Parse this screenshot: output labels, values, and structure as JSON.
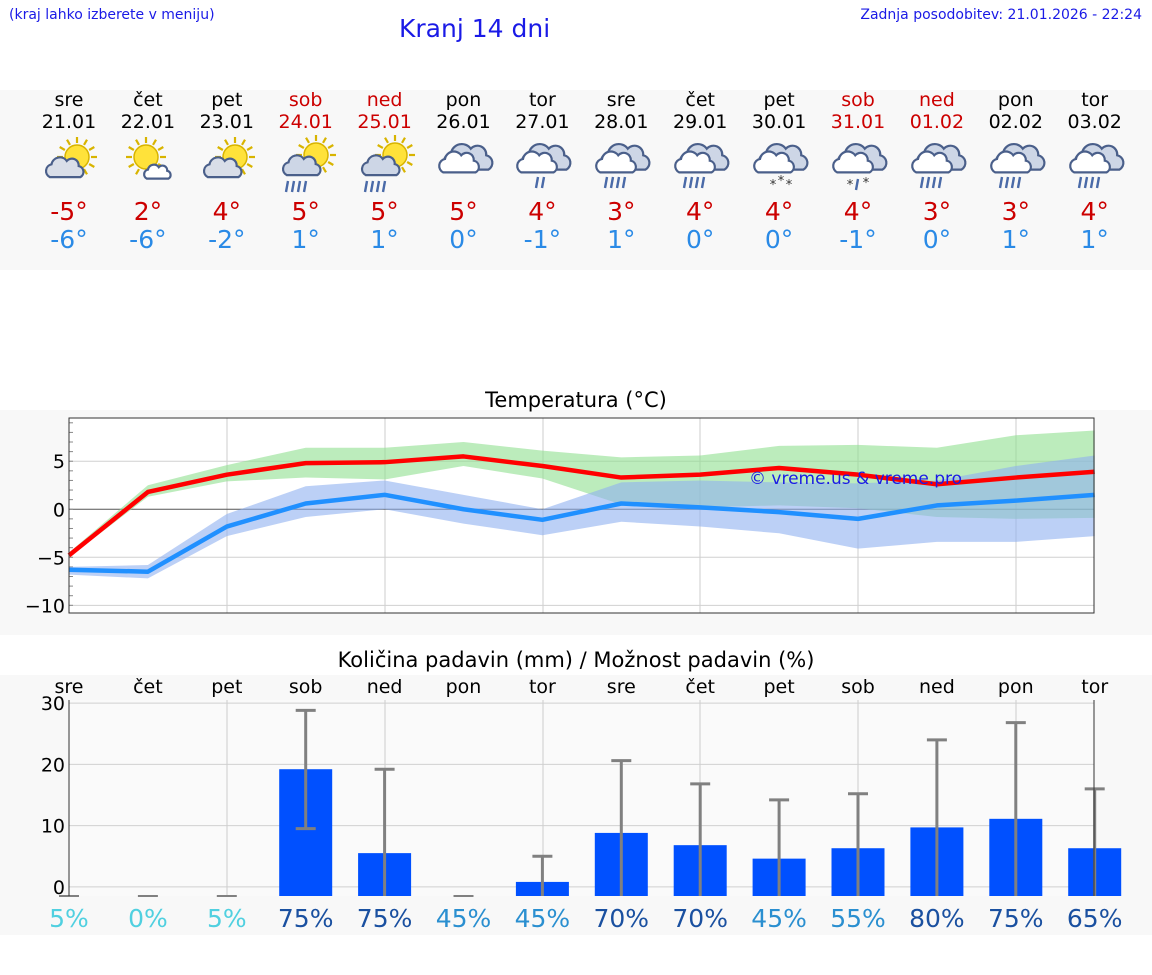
{
  "header": {
    "region_hint": "(kraj lahko izberete v meniju)",
    "title": "Kranj 14 dni",
    "updated": "Zadnja posodobitev: 21.01.2026 - 22:24"
  },
  "colors": {
    "max_temp": "#ff0000",
    "min_temp": "#2090ff",
    "bar": "#0050ff",
    "weekend": "#cc0000",
    "green_band": "#8fe08f",
    "blue_band": "#8fb0f0"
  },
  "days": [
    {
      "name": "sre",
      "date": "21.01",
      "max": "-5°",
      "min": "-6°",
      "icon": "sun-cloud-icon",
      "weekend": false,
      "prob": "5%"
    },
    {
      "name": "čet",
      "date": "22.01",
      "max": "2°",
      "min": "-6°",
      "icon": "sun-small-cloud-icon",
      "weekend": false,
      "prob": "0%"
    },
    {
      "name": "pet",
      "date": "23.01",
      "max": "4°",
      "min": "-2°",
      "icon": "sun-cloud-icon",
      "weekend": false,
      "prob": "5%"
    },
    {
      "name": "sob",
      "date": "24.01",
      "max": "5°",
      "min": "1°",
      "icon": "sun-cloud-rain-icon",
      "weekend": true,
      "prob": "75%"
    },
    {
      "name": "ned",
      "date": "25.01",
      "max": "5°",
      "min": "1°",
      "icon": "sun-cloud-rain-icon",
      "weekend": true,
      "prob": "75%"
    },
    {
      "name": "pon",
      "date": "26.01",
      "max": "5°",
      "min": "0°",
      "icon": "cloud-icon",
      "weekend": false,
      "prob": "45%"
    },
    {
      "name": "tor",
      "date": "27.01",
      "max": "4°",
      "min": "-1°",
      "icon": "cloud-light-rain-icon",
      "weekend": false,
      "prob": "45%"
    },
    {
      "name": "sre",
      "date": "28.01",
      "max": "3°",
      "min": "1°",
      "icon": "cloud-rain-icon",
      "weekend": false,
      "prob": "70%"
    },
    {
      "name": "čet",
      "date": "29.01",
      "max": "4°",
      "min": "0°",
      "icon": "cloud-rain-icon",
      "weekend": false,
      "prob": "70%"
    },
    {
      "name": "pet",
      "date": "30.01",
      "max": "4°",
      "min": "0°",
      "icon": "cloud-snow-icon",
      "weekend": false,
      "prob": "45%"
    },
    {
      "name": "sob",
      "date": "31.01",
      "max": "4°",
      "min": "-1°",
      "icon": "cloud-sleet-icon",
      "weekend": true,
      "prob": "55%"
    },
    {
      "name": "ned",
      "date": "01.02",
      "max": "3°",
      "min": "0°",
      "icon": "cloud-rain-icon",
      "weekend": true,
      "prob": "80%"
    },
    {
      "name": "pon",
      "date": "02.02",
      "max": "3°",
      "min": "1°",
      "icon": "cloud-rain-icon",
      "weekend": false,
      "prob": "75%"
    },
    {
      "name": "tor",
      "date": "03.02",
      "max": "4°",
      "min": "1°",
      "icon": "cloud-rain-icon",
      "weekend": false,
      "prob": "65%"
    }
  ],
  "chart_data": [
    {
      "type": "line",
      "title": "Temperatura (°C)",
      "watermark": "© vreme.us & vreme.pro",
      "x": [
        0,
        1,
        2,
        3,
        4,
        5,
        6,
        7,
        8,
        9,
        10,
        11,
        12,
        13
      ],
      "ylim": [
        -10.8,
        9.5
      ],
      "yticks": [
        -10,
        -5,
        0,
        5
      ],
      "ytick_labels": [
        "−10",
        "−5",
        "0",
        "5"
      ],
      "series": [
        {
          "name": "max",
          "values": [
            -4.8,
            1.8,
            3.6,
            4.8,
            4.9,
            5.5,
            4.5,
            3.3,
            3.6,
            4.3,
            3.6,
            2.6,
            3.3,
            3.9
          ]
        },
        {
          "name": "min",
          "values": [
            -6.3,
            -6.5,
            -1.8,
            0.6,
            1.5,
            0.0,
            -1.1,
            0.6,
            0.2,
            -0.3,
            -1.0,
            0.4,
            0.9,
            1.5
          ]
        },
        {
          "name": "max-range-high",
          "values": [
            -4.5,
            2.5,
            4.6,
            6.4,
            6.4,
            7.0,
            6.1,
            5.4,
            5.6,
            6.6,
            6.7,
            6.4,
            7.7,
            8.2
          ]
        },
        {
          "name": "max-range-low",
          "values": [
            -5.0,
            1.3,
            2.9,
            3.3,
            3.1,
            4.5,
            3.2,
            0.5,
            0.2,
            0.4,
            0.1,
            -0.8,
            -1.0,
            -0.9
          ]
        },
        {
          "name": "min-range-high",
          "values": [
            -6.0,
            -5.8,
            -0.5,
            2.4,
            3.0,
            1.5,
            0.0,
            2.8,
            3.0,
            2.8,
            2.7,
            3.0,
            4.5,
            5.6
          ]
        },
        {
          "name": "min-range-low",
          "values": [
            -6.8,
            -7.2,
            -2.8,
            -0.8,
            0.0,
            -1.5,
            -2.7,
            -1.3,
            -1.8,
            -2.5,
            -4.1,
            -3.4,
            -3.4,
            -2.8
          ]
        }
      ]
    },
    {
      "type": "bar",
      "title": "Količina padavin (mm) / Možnost padavin (%)",
      "categories": [
        "sre",
        "čet",
        "pet",
        "sob",
        "ned",
        "pon",
        "tor",
        "sre",
        "čet",
        "pet",
        "sob",
        "ned",
        "pon",
        "tor"
      ],
      "ylim": [
        -1.5,
        30.5
      ],
      "yticks": [
        0,
        10,
        20,
        30
      ],
      "ytick_labels": [
        "0",
        "10",
        "20",
        "30"
      ],
      "values": [
        0,
        0,
        0,
        19.2,
        5.5,
        0,
        0.8,
        8.8,
        6.8,
        4.6,
        6.3,
        9.7,
        11.1,
        6.3
      ],
      "error_low": [
        0,
        0,
        0,
        9.5,
        0,
        0,
        0,
        0,
        0,
        0,
        0,
        0,
        0,
        0
      ],
      "error_high": [
        0,
        0,
        0,
        28.8,
        19.2,
        0,
        5.0,
        20.6,
        16.8,
        14.2,
        15.2,
        24.0,
        26.8,
        16.0
      ],
      "probabilities": [
        "5%",
        "0%",
        "5%",
        "75%",
        "75%",
        "45%",
        "45%",
        "70%",
        "70%",
        "45%",
        "55%",
        "80%",
        "75%",
        "65%"
      ]
    }
  ]
}
